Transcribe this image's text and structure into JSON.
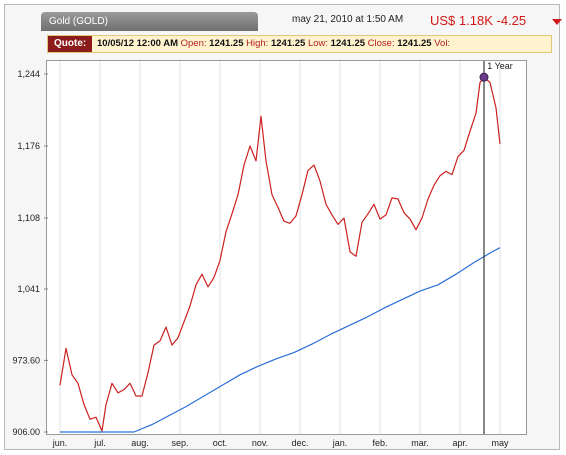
{
  "header": {
    "symbol_label": "Gold (GOLD)",
    "timestamp": "may 21, 2010 at 1:50 AM",
    "price_text": "US$ 1.18K -4.25",
    "change_color": "#d01818"
  },
  "quote": {
    "label": "Quote:",
    "date": "10/05/12 12:00 AM",
    "open_label": "Open:",
    "open_value": "1241.25",
    "high_label": "High:",
    "high_value": "1241.25",
    "low_label": "Low:",
    "low_value": "1241.25",
    "close_label": "Close:",
    "close_value": "1241.25",
    "vol_label": "Vol:"
  },
  "chart_data": {
    "type": "line",
    "title": "",
    "xlabel": "",
    "ylabel": "",
    "y_tick_labels": [
      "1,244",
      "1,176",
      "1,108",
      "1,041",
      "973.60",
      "906.00"
    ],
    "y_tick_values": [
      1244,
      1176,
      1108,
      1041,
      973.6,
      906
    ],
    "ylim": [
      906,
      1244
    ],
    "x_tick_labels": [
      "jun.",
      "jul.",
      "aug.",
      "sep.",
      "oct.",
      "nov.",
      "dec.",
      "jan.",
      "feb.",
      "mar.",
      "apr.",
      "may"
    ],
    "range_label": "1 Year",
    "grid": "vertical",
    "series": [
      {
        "color": "#cc2020",
        "points": [
          [
            0.0,
            950
          ],
          [
            0.3,
            985
          ],
          [
            0.6,
            960
          ],
          [
            0.9,
            952
          ],
          [
            1.2,
            932
          ],
          [
            1.5,
            918
          ],
          [
            1.8,
            920
          ],
          [
            2.1,
            907
          ],
          [
            2.3,
            932
          ],
          [
            2.6,
            952
          ],
          [
            2.9,
            943
          ],
          [
            3.2,
            946
          ],
          [
            3.5,
            952
          ],
          [
            3.8,
            940
          ],
          [
            4.1,
            940
          ],
          [
            4.4,
            962
          ],
          [
            4.7,
            988
          ],
          [
            5.0,
            992
          ],
          [
            5.3,
            1005
          ],
          [
            5.6,
            988
          ],
          [
            5.9,
            995
          ],
          [
            6.2,
            1010
          ],
          [
            6.5,
            1025
          ],
          [
            6.8,
            1045
          ],
          [
            7.1,
            1055
          ],
          [
            7.4,
            1043
          ],
          [
            7.7,
            1052
          ],
          [
            8.0,
            1068
          ],
          [
            8.3,
            1095
          ],
          [
            8.6,
            1112
          ],
          [
            8.9,
            1130
          ],
          [
            9.2,
            1158
          ],
          [
            9.5,
            1176
          ],
          [
            9.8,
            1162
          ],
          [
            10.05,
            1204
          ],
          [
            10.3,
            1162
          ],
          [
            10.6,
            1130
          ],
          [
            10.9,
            1118
          ],
          [
            11.2,
            1105
          ],
          [
            11.5,
            1103
          ],
          [
            11.8,
            1110
          ],
          [
            12.1,
            1130
          ],
          [
            12.4,
            1153
          ],
          [
            12.7,
            1158
          ],
          [
            13.0,
            1143
          ],
          [
            13.3,
            1121
          ],
          [
            13.6,
            1111
          ],
          [
            13.9,
            1102
          ],
          [
            14.2,
            1108
          ],
          [
            14.5,
            1076
          ],
          [
            14.8,
            1072
          ],
          [
            15.1,
            1104
          ],
          [
            15.4,
            1112
          ],
          [
            15.7,
            1121
          ],
          [
            16.0,
            1107
          ],
          [
            16.3,
            1111
          ],
          [
            16.6,
            1127
          ],
          [
            16.9,
            1126
          ],
          [
            17.2,
            1113
          ],
          [
            17.5,
            1107
          ],
          [
            17.8,
            1097
          ],
          [
            18.1,
            1108
          ],
          [
            18.4,
            1126
          ],
          [
            18.7,
            1139
          ],
          [
            19.0,
            1148
          ],
          [
            19.3,
            1152
          ],
          [
            19.6,
            1149
          ],
          [
            19.9,
            1166
          ],
          [
            20.2,
            1172
          ],
          [
            20.5,
            1190
          ],
          [
            20.8,
            1207
          ],
          [
            21.0,
            1236
          ],
          [
            21.2,
            1241
          ],
          [
            21.5,
            1236
          ],
          [
            21.8,
            1212
          ],
          [
            22.0,
            1178
          ]
        ]
      },
      {
        "color": "#2a6fd6",
        "points": [
          [
            0.0,
            906
          ],
          [
            1.0,
            906
          ],
          [
            2.0,
            906
          ],
          [
            3.0,
            906
          ],
          [
            3.7,
            906
          ],
          [
            4.6,
            913
          ],
          [
            5.4,
            921
          ],
          [
            6.3,
            930
          ],
          [
            7.2,
            940
          ],
          [
            8.1,
            950
          ],
          [
            9.0,
            960
          ],
          [
            9.9,
            968
          ],
          [
            10.8,
            975
          ],
          [
            11.7,
            981
          ],
          [
            12.6,
            989
          ],
          [
            13.5,
            998
          ],
          [
            14.4,
            1006
          ],
          [
            15.3,
            1014
          ],
          [
            16.2,
            1023
          ],
          [
            17.1,
            1031
          ],
          [
            18.0,
            1039
          ],
          [
            18.9,
            1045
          ],
          [
            19.8,
            1055
          ],
          [
            20.7,
            1066
          ],
          [
            21.6,
            1076
          ],
          [
            22.0,
            1080
          ]
        ]
      }
    ]
  }
}
